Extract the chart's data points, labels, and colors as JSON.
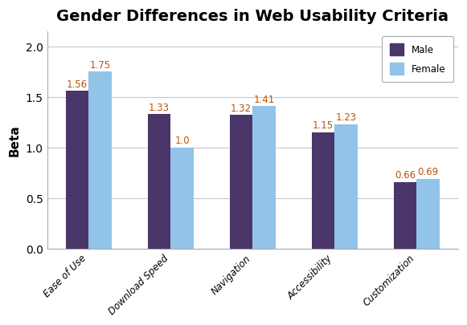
{
  "title": "Gender Differences in Web Usability Criteria",
  "categories": [
    "Ease of Use",
    "Download Speed",
    "Navigation",
    "Accessibility",
    "Customization"
  ],
  "male_values": [
    1.56,
    1.33,
    1.32,
    1.15,
    0.66
  ],
  "female_values": [
    1.75,
    1.0,
    1.41,
    1.23,
    0.69
  ],
  "male_color": "#4a3668",
  "female_color": "#91c4e8",
  "ylabel": "Beta",
  "ylim": [
    0,
    2.15
  ],
  "yticks": [
    0,
    0.5,
    1.0,
    1.5,
    2.0
  ],
  "legend_labels": [
    "Male",
    "Female"
  ],
  "bar_width": 0.28,
  "title_fontsize": 14,
  "label_fontsize": 8.5,
  "axis_label_fontsize": 11,
  "value_label_color": "#b8540a",
  "grid_color": "#c8c8c8",
  "bg_color": "#ffffff",
  "plot_bg_color": "#ffffff"
}
